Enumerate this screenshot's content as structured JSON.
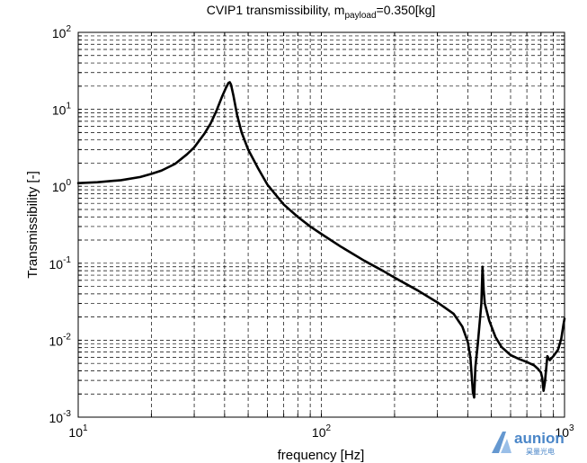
{
  "chart_data": {
    "type": "line",
    "title_main": "CVIP1 transmissibility, m",
    "title_sub": "payload",
    "title_tail": "=0.350[kg]",
    "xlabel": "frequency [Hz]",
    "ylabel": "Transmissibility [-]",
    "x_scale": "log",
    "y_scale": "log",
    "xlim": [
      10,
      1000
    ],
    "ylim": [
      0.001,
      100
    ],
    "grid": true,
    "x_ticks": [
      {
        "value": 10,
        "base": "10",
        "exp": "1"
      },
      {
        "value": 100,
        "base": "10",
        "exp": "2"
      },
      {
        "value": 1000,
        "base": "10",
        "exp": "3"
      }
    ],
    "y_ticks": [
      {
        "value": 0.001,
        "base": "10",
        "exp": "-3"
      },
      {
        "value": 0.01,
        "base": "10",
        "exp": "-2"
      },
      {
        "value": 0.1,
        "base": "10",
        "exp": "-1"
      },
      {
        "value": 1,
        "base": "10",
        "exp": "0"
      },
      {
        "value": 10,
        "base": "10",
        "exp": "1"
      },
      {
        "value": 100,
        "base": "10",
        "exp": "2"
      }
    ],
    "series": [
      {
        "color": "#000000",
        "points": [
          [
            10,
            1.1
          ],
          [
            12,
            1.13
          ],
          [
            15,
            1.2
          ],
          [
            18,
            1.32
          ],
          [
            20,
            1.45
          ],
          [
            22,
            1.6
          ],
          [
            25,
            1.95
          ],
          [
            28,
            2.6
          ],
          [
            30,
            3.2
          ],
          [
            33,
            4.8
          ],
          [
            35,
            6.5
          ],
          [
            37,
            9.5
          ],
          [
            39,
            14.5
          ],
          [
            40.5,
            19
          ],
          [
            41.5,
            22
          ],
          [
            42,
            22.5
          ],
          [
            42.5,
            21
          ],
          [
            43.5,
            15
          ],
          [
            45,
            8.5
          ],
          [
            47,
            5
          ],
          [
            50,
            3
          ],
          [
            55,
            1.7
          ],
          [
            60,
            1.05
          ],
          [
            70,
            0.58
          ],
          [
            80,
            0.4
          ],
          [
            90,
            0.3
          ],
          [
            100,
            0.24
          ],
          [
            120,
            0.165
          ],
          [
            150,
            0.108
          ],
          [
            180,
            0.079
          ],
          [
            200,
            0.065
          ],
          [
            250,
            0.044
          ],
          [
            300,
            0.031
          ],
          [
            350,
            0.022
          ],
          [
            380,
            0.015
          ],
          [
            400,
            0.0095
          ],
          [
            410,
            0.006
          ],
          [
            420,
            0.0021
          ],
          [
            425,
            0.0018
          ],
          [
            430,
            0.0045
          ],
          [
            440,
            0.009
          ],
          [
            455,
            0.03
          ],
          [
            460,
            0.09
          ],
          [
            465,
            0.045
          ],
          [
            470,
            0.03
          ],
          [
            490,
            0.018
          ],
          [
            520,
            0.011
          ],
          [
            550,
            0.0082
          ],
          [
            600,
            0.0064
          ],
          [
            650,
            0.0057
          ],
          [
            700,
            0.0052
          ],
          [
            750,
            0.0047
          ],
          [
            780,
            0.0042
          ],
          [
            800,
            0.0038
          ],
          [
            810,
            0.0032
          ],
          [
            820,
            0.0022
          ],
          [
            830,
            0.0028
          ],
          [
            850,
            0.0062
          ],
          [
            870,
            0.0055
          ],
          [
            900,
            0.0062
          ],
          [
            940,
            0.0075
          ],
          [
            970,
            0.0105
          ],
          [
            990,
            0.016
          ],
          [
            1000,
            0.019
          ]
        ]
      }
    ]
  },
  "watermark": {
    "word": "aunion",
    "sub": "昊量光电",
    "color": "#4a86c8"
  }
}
